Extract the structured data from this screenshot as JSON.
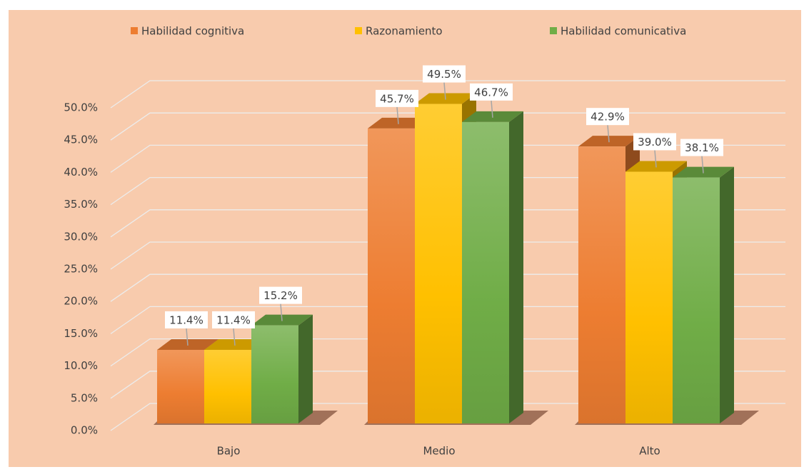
{
  "chart_data": {
    "type": "bar3d",
    "categories": [
      "Bajo",
      "Medio",
      "Alto"
    ],
    "series": [
      {
        "name": "Habilidad cognitiva",
        "color": "#ED7D31",
        "values": [
          11.4,
          45.7,
          42.9
        ],
        "value_labels": [
          "11.4%",
          "45.7%",
          "42.9%"
        ]
      },
      {
        "name": "Razonamiento",
        "color": "#FFC000",
        "values": [
          11.4,
          49.5,
          39.0
        ],
        "value_labels": [
          "11.4%",
          "49.5%",
          "39.0%"
        ]
      },
      {
        "name": "Habilidad comunicativa",
        "color": "#70AD47",
        "values": [
          15.2,
          46.7,
          38.1
        ],
        "value_labels": [
          "15.2%",
          "46.7%",
          "38.1%"
        ]
      }
    ],
    "ylim": [
      0,
      50
    ],
    "yticks": [
      {
        "value": 0,
        "label": "0.0%"
      },
      {
        "value": 5,
        "label": "5.0%"
      },
      {
        "value": 10,
        "label": "10.0%"
      },
      {
        "value": 15,
        "label": "15.0%"
      },
      {
        "value": 20,
        "label": "20.0%"
      },
      {
        "value": 25,
        "label": "25.0%"
      },
      {
        "value": 30,
        "label": "30.0%"
      },
      {
        "value": 35,
        "label": "35.0%"
      },
      {
        "value": 40,
        "label": "40.0%"
      },
      {
        "value": 45,
        "label": "45.0%"
      },
      {
        "value": 50,
        "label": "50.0%"
      }
    ],
    "grid": true,
    "legend": "top"
  }
}
